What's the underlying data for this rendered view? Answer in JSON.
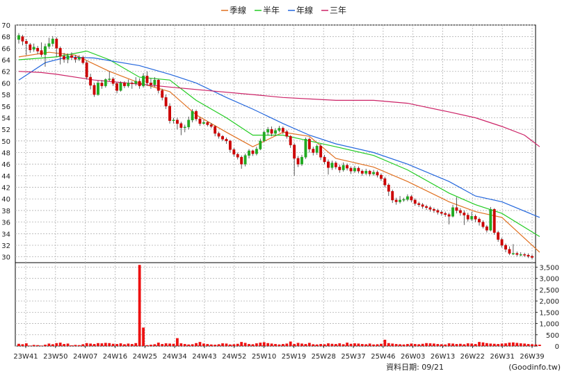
{
  "legend": [
    {
      "label": "季線",
      "color": "#e07020"
    },
    {
      "label": "半年",
      "color": "#22cc22"
    },
    {
      "label": "年線",
      "color": "#2266dd"
    },
    {
      "label": "三年",
      "color": "#cc2266"
    }
  ],
  "footer": {
    "date_label": "資料日期: 09/21",
    "source": "(Goodinfo.tw)"
  },
  "chart_data": [
    {
      "type": "candlestick",
      "title": "",
      "x_ticks": [
        "23W41",
        "23W50",
        "24W07",
        "24W16",
        "24W25",
        "24W34",
        "24W43",
        "24W52",
        "25W10",
        "25W19",
        "25W28",
        "25W37",
        "25W46",
        "26W03",
        "26W13",
        "26W22",
        "26W31",
        "26W39"
      ],
      "ylim": [
        29,
        70
      ],
      "y_ticks": [
        30,
        32,
        34,
        36,
        38,
        40,
        42,
        44,
        46,
        48,
        50,
        52,
        54,
        56,
        58,
        60,
        62,
        64,
        66,
        68,
        70
      ],
      "grid": true,
      "up_color": "#22aa22",
      "down_color": "#cc0000",
      "candles": [
        [
          67.5,
          68.2,
          68.6,
          66.8
        ],
        [
          68.0,
          67.2,
          68.3,
          66.5
        ],
        [
          67.2,
          66.8,
          67.6,
          64.8
        ],
        [
          66.6,
          65.7,
          66.9,
          65.2
        ],
        [
          65.8,
          66.2,
          66.8,
          65.4
        ],
        [
          66.0,
          65.5,
          66.4,
          65.0
        ],
        [
          65.6,
          64.9,
          67.0,
          64.5
        ],
        [
          64.9,
          66.3,
          66.8,
          62.8
        ],
        [
          66.3,
          66.8,
          67.8,
          65.9
        ],
        [
          66.8,
          67.6,
          68.1,
          66.3
        ],
        [
          67.6,
          66.0,
          67.9,
          64.5
        ],
        [
          66.0,
          64.6,
          66.3,
          63.2
        ],
        [
          64.6,
          64.1,
          65.2,
          63.5
        ],
        [
          64.1,
          64.7,
          65.1,
          63.4
        ],
        [
          64.7,
          64.4,
          65.3,
          64.0
        ],
        [
          64.4,
          64.1,
          64.8,
          63.5
        ],
        [
          64.1,
          64.4,
          64.8,
          63.8
        ],
        [
          64.4,
          63.5,
          64.7,
          63.2
        ],
        [
          63.5,
          61.0,
          63.9,
          60.6
        ],
        [
          61.0,
          59.6,
          61.6,
          58.9
        ],
        [
          59.6,
          58.0,
          60.0,
          57.6
        ],
        [
          58.0,
          60.0,
          60.4,
          57.8
        ],
        [
          60.0,
          59.5,
          60.5,
          59.0
        ],
        [
          59.5,
          60.6,
          60.8,
          59.2
        ],
        [
          60.6,
          60.7,
          62.0,
          60.3
        ],
        [
          60.7,
          59.9,
          61.0,
          59.5
        ],
        [
          59.9,
          58.7,
          60.1,
          58.2
        ],
        [
          58.7,
          60.0,
          60.3,
          58.5
        ],
        [
          60.0,
          59.5,
          60.3,
          59.1
        ],
        [
          59.5,
          60.0,
          60.6,
          59.2
        ],
        [
          60.0,
          59.9,
          60.3,
          59.0
        ],
        [
          59.9,
          60.3,
          61.0,
          59.5
        ],
        [
          60.3,
          59.5,
          60.8,
          59.0
        ],
        [
          59.5,
          61.2,
          61.7,
          59.2
        ],
        [
          61.2,
          60.0,
          62.0,
          59.5
        ],
        [
          60.0,
          59.7,
          60.8,
          59.0
        ],
        [
          59.7,
          60.5,
          61.0,
          59.3
        ],
        [
          60.5,
          58.7,
          60.7,
          58.2
        ],
        [
          58.7,
          57.5,
          59.0,
          57.0
        ],
        [
          57.5,
          56.0,
          58.0,
          55.5
        ],
        [
          56.0,
          53.5,
          56.5,
          53.0
        ],
        [
          53.5,
          53.6,
          54.0,
          53.0
        ],
        [
          53.6,
          53.0,
          54.0,
          52.0
        ],
        [
          53.0,
          52.3,
          53.3,
          51.0
        ],
        [
          52.3,
          52.4,
          52.8,
          51.5
        ],
        [
          52.4,
          53.6,
          54.2,
          52.0
        ],
        [
          53.6,
          55.1,
          55.5,
          53.2
        ],
        [
          55.1,
          53.8,
          55.4,
          53.4
        ],
        [
          53.8,
          53.0,
          54.1,
          52.6
        ],
        [
          53.0,
          53.2,
          53.6,
          52.8
        ],
        [
          53.2,
          52.8,
          53.4,
          52.5
        ],
        [
          52.8,
          52.5,
          53.1,
          52.2
        ],
        [
          52.5,
          51.3,
          52.7,
          50.8
        ],
        [
          51.3,
          50.8,
          51.6,
          50.4
        ],
        [
          50.8,
          50.3,
          51.0,
          50.0
        ],
        [
          50.3,
          50.0,
          50.6,
          49.5
        ],
        [
          50.0,
          48.5,
          50.2,
          48.0
        ],
        [
          48.5,
          47.7,
          48.8,
          47.3
        ],
        [
          47.7,
          47.2,
          48.0,
          46.8
        ],
        [
          47.2,
          46.0,
          47.5,
          45.2
        ],
        [
          46.0,
          47.5,
          47.8,
          45.6
        ],
        [
          47.5,
          48.3,
          48.6,
          47.0
        ],
        [
          48.3,
          47.8,
          48.5,
          47.4
        ],
        [
          47.8,
          48.6,
          49.0,
          47.5
        ],
        [
          48.6,
          50.0,
          50.4,
          48.4
        ],
        [
          50.0,
          51.5,
          51.8,
          49.8
        ],
        [
          51.5,
          52.0,
          52.4,
          51.0
        ],
        [
          52.0,
          51.3,
          52.5,
          50.8
        ],
        [
          51.3,
          51.8,
          52.2,
          51.0
        ],
        [
          51.8,
          52.2,
          52.6,
          51.5
        ],
        [
          52.2,
          51.6,
          52.5,
          51.2
        ],
        [
          51.6,
          50.8,
          51.9,
          50.4
        ],
        [
          50.8,
          49.3,
          51.0,
          48.8
        ],
        [
          49.3,
          47.0,
          49.6,
          44.0
        ],
        [
          47.0,
          46.0,
          47.4,
          45.5
        ],
        [
          46.0,
          47.2,
          47.6,
          45.7
        ],
        [
          47.2,
          50.3,
          50.6,
          46.9
        ],
        [
          50.3,
          48.6,
          50.6,
          48.0
        ],
        [
          48.6,
          48.0,
          49.0,
          47.5
        ],
        [
          48.0,
          49.1,
          49.4,
          47.6
        ],
        [
          49.1,
          47.2,
          49.5,
          46.7
        ],
        [
          47.2,
          46.4,
          47.6,
          46.0
        ],
        [
          46.4,
          45.4,
          46.8,
          44.2
        ],
        [
          45.4,
          46.2,
          46.6,
          45.0
        ],
        [
          46.2,
          45.5,
          46.5,
          45.1
        ],
        [
          45.5,
          45.0,
          45.9,
          44.5
        ],
        [
          45.0,
          45.8,
          46.3,
          44.7
        ],
        [
          45.8,
          45.3,
          46.1,
          44.9
        ],
        [
          45.3,
          44.8,
          45.6,
          44.3
        ],
        [
          44.8,
          45.3,
          45.7,
          44.5
        ],
        [
          45.3,
          44.8,
          45.6,
          44.4
        ],
        [
          44.8,
          44.4,
          45.1,
          44.0
        ],
        [
          44.4,
          44.8,
          45.2,
          44.1
        ],
        [
          44.8,
          44.3,
          45.0,
          43.9
        ],
        [
          44.3,
          44.6,
          45.0,
          44.0
        ],
        [
          44.6,
          44.1,
          44.9,
          43.7
        ],
        [
          44.1,
          43.5,
          44.4,
          43.1
        ],
        [
          43.5,
          42.4,
          43.8,
          42.0
        ],
        [
          42.4,
          41.3,
          42.7,
          40.5
        ],
        [
          41.3,
          39.8,
          41.6,
          39.3
        ],
        [
          39.8,
          39.5,
          40.2,
          39.0
        ],
        [
          39.5,
          39.8,
          40.5,
          39.2
        ],
        [
          39.8,
          39.9,
          40.2,
          39.5
        ],
        [
          39.9,
          40.4,
          40.8,
          39.6
        ],
        [
          40.4,
          39.8,
          40.7,
          39.4
        ],
        [
          39.8,
          39.2,
          40.1,
          38.8
        ],
        [
          39.2,
          39.0,
          39.5,
          38.6
        ],
        [
          39.0,
          38.7,
          39.3,
          38.3
        ],
        [
          38.7,
          38.5,
          39.0,
          38.1
        ],
        [
          38.5,
          38.2,
          38.8,
          37.8
        ],
        [
          38.2,
          38.0,
          38.5,
          37.6
        ],
        [
          38.0,
          37.7,
          38.3,
          37.3
        ],
        [
          37.7,
          37.5,
          38.0,
          37.1
        ],
        [
          37.5,
          37.3,
          37.8,
          36.9
        ],
        [
          37.3,
          37.0,
          37.6,
          35.6
        ],
        [
          37.0,
          38.5,
          39.0,
          36.8
        ],
        [
          38.5,
          38.0,
          40.3,
          37.5
        ],
        [
          38.0,
          37.6,
          38.4,
          37.1
        ],
        [
          37.6,
          37.2,
          38.0,
          35.5
        ],
        [
          37.2,
          36.5,
          37.6,
          36.1
        ],
        [
          36.5,
          37.0,
          37.8,
          36.2
        ],
        [
          37.0,
          36.5,
          37.3,
          36.0
        ],
        [
          36.5,
          36.0,
          36.8,
          35.4
        ],
        [
          36.0,
          35.2,
          36.3,
          34.9
        ],
        [
          35.2,
          34.6,
          35.5,
          34.2
        ],
        [
          34.6,
          38.2,
          38.6,
          34.4
        ],
        [
          38.2,
          34.2,
          38.4,
          33.8
        ],
        [
          34.2,
          33.0,
          34.5,
          32.6
        ],
        [
          33.0,
          32.0,
          33.3,
          31.6
        ],
        [
          32.0,
          31.3,
          32.3,
          30.8
        ],
        [
          31.3,
          30.6,
          31.8,
          30.3
        ],
        [
          30.6,
          30.6,
          32.2,
          30.3
        ],
        [
          30.6,
          30.4,
          30.9,
          30.1
        ],
        [
          30.4,
          30.4,
          30.8,
          30.1
        ],
        [
          30.4,
          30.3,
          30.7,
          30.0
        ],
        [
          30.3,
          30.1,
          30.6,
          29.8
        ],
        [
          30.1,
          29.9,
          30.4,
          29.6
        ]
      ],
      "moving_averages": [
        {
          "name": "季線",
          "color": "#e07020",
          "x": [
            0,
            8,
            15,
            24,
            32,
            40,
            47,
            55,
            62,
            70,
            77,
            84,
            94,
            103,
            114,
            121,
            128,
            138
          ],
          "values": [
            64.5,
            65.3,
            64.8,
            62.0,
            60.0,
            58.5,
            54.5,
            51.5,
            49.0,
            51.5,
            50.8,
            47.0,
            45.5,
            43.0,
            39.5,
            37.8,
            36.8,
            30.8
          ]
        },
        {
          "name": "半年",
          "color": "#22cc22",
          "x": [
            0,
            10,
            18,
            24,
            32,
            40,
            47,
            55,
            62,
            70,
            77,
            84,
            94,
            103,
            114,
            121,
            128,
            138
          ],
          "values": [
            64.0,
            64.5,
            65.5,
            64.0,
            61.0,
            60.5,
            57.0,
            54.0,
            51.0,
            51.0,
            50.0,
            49.0,
            47.5,
            45.0,
            41.0,
            39.0,
            37.5,
            33.5
          ]
        },
        {
          "name": "年線",
          "color": "#2266dd",
          "x": [
            0,
            7,
            13,
            20,
            32,
            40,
            47,
            55,
            62,
            70,
            77,
            84,
            94,
            103,
            114,
            121,
            128,
            138
          ],
          "values": [
            60.5,
            63.5,
            64.5,
            64.3,
            63.0,
            61.5,
            60.0,
            57.5,
            55.5,
            53.0,
            51.0,
            49.5,
            48.0,
            46.0,
            43.0,
            40.5,
            39.5,
            36.8
          ]
        },
        {
          "name": "三年",
          "color": "#cc2266",
          "x": [
            0,
            6,
            10,
            20,
            32,
            40,
            50,
            62,
            70,
            84,
            94,
            103,
            114,
            121,
            128,
            134,
            138
          ],
          "values": [
            62.0,
            61.8,
            61.5,
            60.5,
            59.8,
            59.3,
            58.7,
            58.0,
            57.5,
            57.0,
            57.0,
            56.5,
            55.0,
            54.0,
            52.5,
            51.0,
            49.0
          ]
        }
      ]
    },
    {
      "type": "bar",
      "title": "",
      "ylim": [
        0,
        3700
      ],
      "y_ticks": [
        0,
        500,
        1000,
        1500,
        2000,
        2500,
        3000,
        3500
      ],
      "y_tick_labels": [
        "0",
        "500",
        "1,000",
        "1,500",
        "2,000",
        "2,500",
        "3,000",
        "3,500"
      ],
      "bar_color": "#ee1111",
      "volume": [
        100,
        80,
        120,
        20,
        50,
        40,
        20,
        60,
        110,
        80,
        130,
        150,
        90,
        110,
        30,
        50,
        40,
        80,
        130,
        110,
        90,
        130,
        120,
        140,
        130,
        100,
        90,
        120,
        80,
        110,
        90,
        130,
        3600,
        820,
        40,
        60,
        80,
        150,
        90,
        120,
        110,
        100,
        350,
        120,
        90,
        70,
        80,
        130,
        180,
        110,
        90,
        70,
        60,
        80,
        120,
        110,
        70,
        80,
        100,
        180,
        140,
        90,
        80,
        120,
        150,
        170,
        130,
        110,
        90,
        70,
        90,
        110,
        200,
        90,
        140,
        110,
        90,
        140,
        80,
        70,
        90,
        80,
        120,
        100,
        90,
        120,
        80,
        150,
        100,
        120,
        110,
        90,
        80,
        110,
        70,
        80,
        100,
        280,
        130,
        110,
        90,
        80,
        70,
        90,
        110,
        90,
        80,
        100,
        130,
        120,
        110,
        90,
        80,
        70,
        120,
        110,
        90,
        100,
        80,
        120,
        110,
        90,
        180,
        160,
        130,
        110,
        100,
        90,
        110,
        120,
        150,
        160,
        140,
        120,
        110,
        90,
        80,
        70,
        60
      ]
    }
  ]
}
